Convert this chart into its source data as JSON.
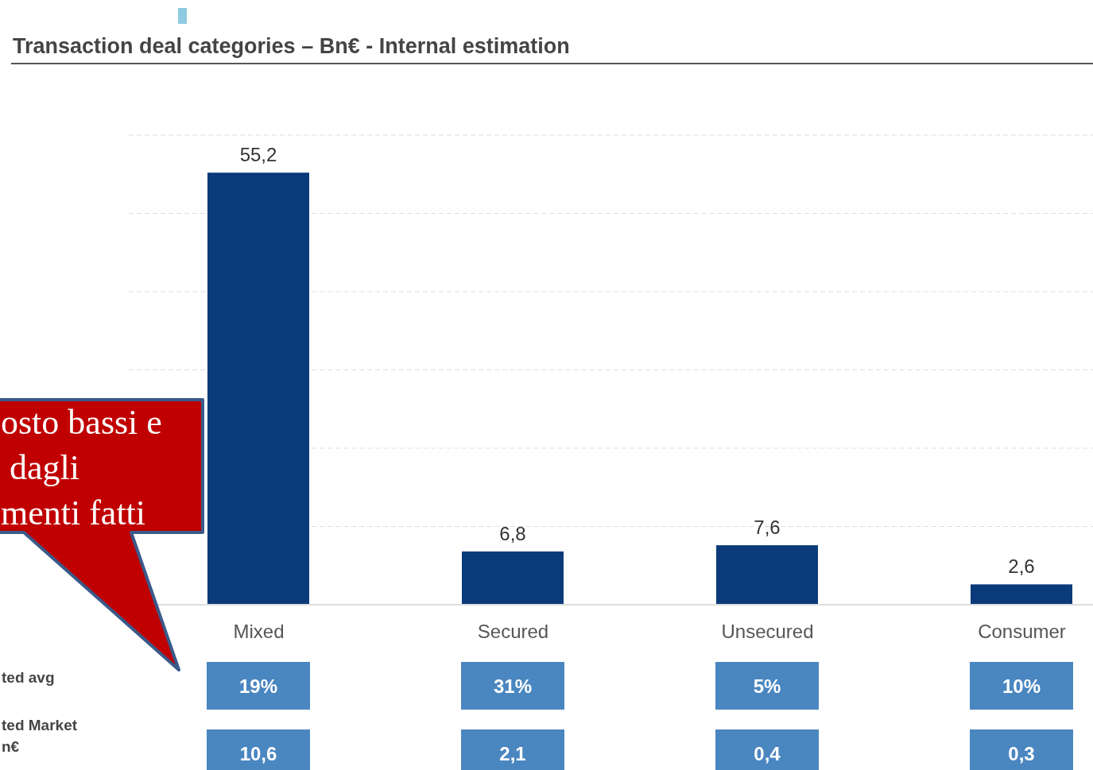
{
  "chart_data": {
    "type": "bar",
    "title": "Transaction deal categories – Bn€ - Internal estimation",
    "categories": [
      "Mixed",
      "Secured",
      "Unsecured",
      "Consumer"
    ],
    "values": [
      55.2,
      6.8,
      7.6,
      2.6
    ],
    "value_labels": [
      "55,2",
      "6,8",
      "7,6",
      "2,6"
    ],
    "color": "#0a3a7a",
    "ylim": [
      0,
      60
    ],
    "yticks": [
      {
        "value": 0,
        "label": null
      },
      {
        "value": 10,
        "label": null
      },
      {
        "value": 20,
        "label": null
      },
      {
        "value": 30,
        "label": null
      },
      {
        "value": 40,
        "label": null
      },
      {
        "value": 50,
        "label": null
      },
      {
        "value": 60,
        "label": null
      }
    ],
    "tick_labels": "x",
    "grid": "y",
    "annotations": [
      "osto bassi e\n dagli\nmenti fatti",
      "ted avg",
      "ted Market\nn€",
      "19%",
      "31%",
      "5%",
      "10%",
      "10,6",
      "2,1",
      "0,4",
      "0,3"
    ]
  }
}
